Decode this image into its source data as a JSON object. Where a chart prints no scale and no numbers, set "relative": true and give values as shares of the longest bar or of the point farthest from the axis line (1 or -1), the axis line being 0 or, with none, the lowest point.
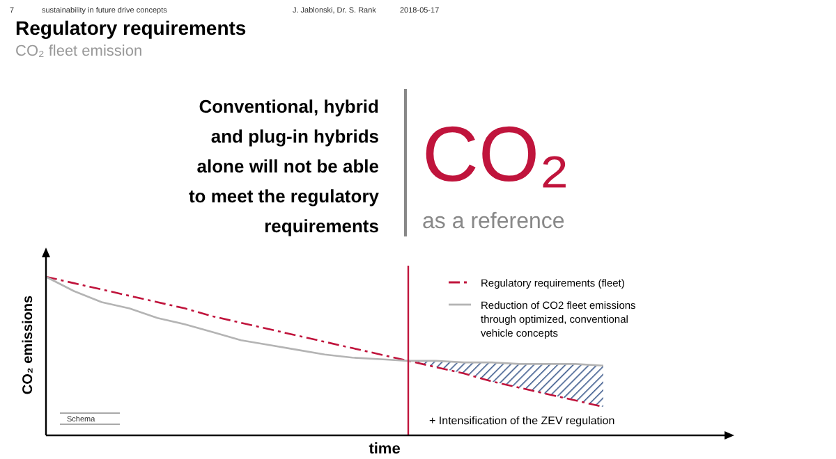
{
  "chart_data": {
    "type": "line",
    "title": "Regulatory requirements",
    "subtitle": "CO₂ fleet emission",
    "xlabel": "time",
    "ylabel": "CO₂ emissions",
    "relative": true,
    "legend": "top right",
    "categories": [
      null,
      null,
      null,
      null,
      null,
      null,
      null,
      null,
      null,
      null,
      null,
      null,
      null,
      null,
      null,
      null,
      null,
      null,
      null,
      null,
      null
    ],
    "series": [
      {
        "name": "Regulatory requirements (fleet)",
        "color": "#c0143c",
        "line_style": "dashed",
        "values": [
          1,
          0.96,
          0.92,
          0.88,
          0.84,
          0.8,
          0.75,
          0.71,
          0.67,
          0.63,
          0.59,
          0.55,
          0.51,
          0.47,
          0.43,
          0.39,
          0.34,
          0.3,
          0.26,
          0.22,
          0.18
        ]
      },
      {
        "name": "Reduction of CO2 fleet emissions through optimized, conventional vehicle concepts",
        "color": "#b4b4b4",
        "line_style": "solid",
        "values": [
          1,
          0.91,
          0.84,
          0.8,
          0.74,
          0.7,
          0.65,
          0.6,
          0.57,
          0.54,
          0.51,
          0.49,
          0.48,
          0.47,
          0.47,
          0.46,
          0.46,
          0.45,
          0.45,
          0.45,
          0.44
        ]
      }
    ],
    "annotations": [
      "7",
      "sustainability in future drive concepts",
      "J. Jablonski,  Dr. S. Rank",
      "2018-05-17",
      "Conventional, hybrid\nand plug-in hybrids\nalone will not be able\nto meet the regulatory\nrequirements",
      "CO₂",
      "as a reference",
      "Schema",
      "+ Intensification of the ZEV regulation"
    ]
  }
}
